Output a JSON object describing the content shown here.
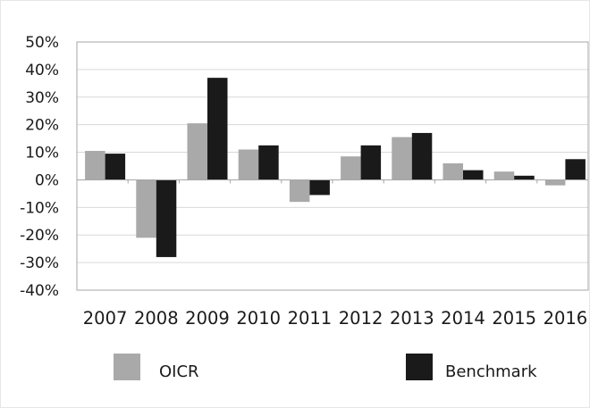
{
  "chart_data": {
    "type": "bar",
    "categories": [
      "2007",
      "2008",
      "2009",
      "2010",
      "2011",
      "2012",
      "2013",
      "2014",
      "2015",
      "2016"
    ],
    "series": [
      {
        "name": "OICR",
        "color": "#a9a9a9",
        "values": [
          10.5,
          -21,
          20.5,
          11,
          -8,
          8.5,
          15.5,
          6,
          3,
          -2
        ]
      },
      {
        "name": "Benchmark",
        "color": "#1a1a1a",
        "values": [
          9.5,
          -28,
          37,
          12.5,
          -5.5,
          12.5,
          17,
          3.5,
          1.5,
          7.5
        ]
      }
    ],
    "ylim": [
      -40,
      50
    ],
    "yticks": [
      50,
      40,
      30,
      20,
      10,
      0,
      -10,
      -20,
      -30,
      -40
    ],
    "ytick_labels": [
      "50%",
      "40%",
      "30%",
      "20%",
      "10%",
      "0%",
      "-10%",
      "-20%",
      "-30%",
      "-40%"
    ],
    "grid": true,
    "legend_position": "bottom",
    "xlabel": "",
    "ylabel": "",
    "title": ""
  }
}
